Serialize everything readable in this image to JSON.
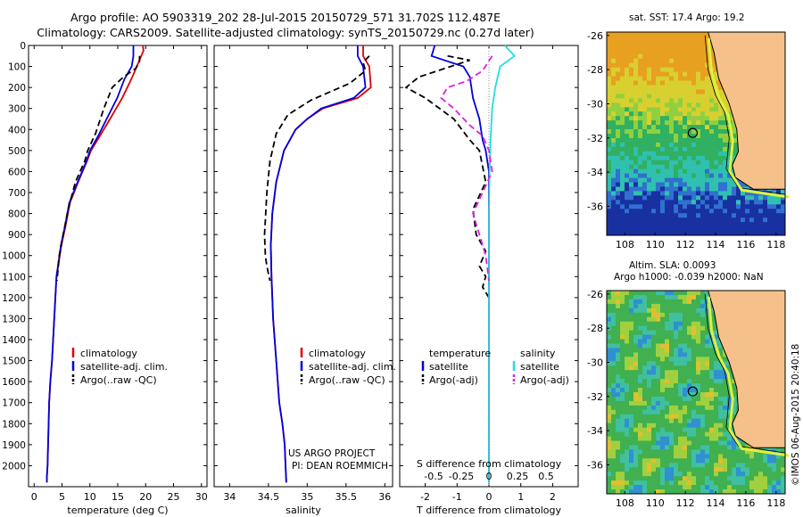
{
  "header": {
    "line1": "Argo profile: AO 5903319_202 28-Jul-2015 20150729_571 31.702S 112.487E",
    "line2": "Climatology: CARS2009. Satellite-adjusted climatology: synTS_20150729.nc (0.27d later)"
  },
  "colors": {
    "climatology": "#dd0000",
    "satellite": "#0000dd",
    "argo": "#000000",
    "sal_satellite": "#22dddd",
    "sal_argo": "#dd22dd"
  },
  "chart_data": [
    {
      "type": "line",
      "panel": "temperature",
      "xlabel": "temperature (deg C)",
      "ylim": [
        2100,
        0
      ],
      "xlim": [
        -1,
        31
      ],
      "xticks": [
        0,
        5,
        10,
        15,
        20,
        25,
        30
      ],
      "yticks": [
        0,
        100,
        200,
        300,
        400,
        500,
        600,
        700,
        800,
        900,
        1000,
        1100,
        1200,
        1300,
        1400,
        1500,
        1600,
        1700,
        1800,
        1900,
        2000
      ],
      "legend": [
        "climatology",
        "satellite-adj. clim.",
        "Argo(..raw -QC)"
      ],
      "series": [
        {
          "name": "climatology",
          "style": "solid",
          "color": "#dd0000",
          "x": [
            19.5,
            19.6,
            19.2,
            17.6,
            15.8,
            13.6,
            11.8,
            10.2,
            9.5,
            7.9,
            6.4,
            5.7,
            4.9,
            4.0,
            3.6,
            3.2,
            2.9,
            2.7,
            2.6,
            2.5,
            2.4,
            2.3,
            2.3
          ],
          "y": [
            0,
            25,
            50,
            150,
            250,
            350,
            430,
            500,
            550,
            650,
            750,
            850,
            950,
            1100,
            1300,
            1500,
            1600,
            1700,
            1800,
            1900,
            2000,
            2050,
            2080
          ]
        },
        {
          "name": "satellite-adj. clim.",
          "style": "solid",
          "color": "#0000dd",
          "x": [
            17.8,
            17.8,
            17.5,
            16.2,
            14.9,
            13.0,
            11.5,
            10.0,
            9.4,
            7.8,
            6.3,
            5.6,
            4.8,
            4.0,
            3.6,
            3.2,
            2.9,
            2.7,
            2.6,
            2.5,
            2.4,
            2.3,
            2.3
          ],
          "y": [
            0,
            50,
            100,
            160,
            250,
            350,
            430,
            500,
            550,
            650,
            750,
            850,
            950,
            1100,
            1300,
            1500,
            1600,
            1700,
            1800,
            1900,
            2000,
            2050,
            2080
          ]
        },
        {
          "name": "Argo(..raw -QC)",
          "style": "dashed",
          "color": "#000000",
          "x": [
            18.9,
            18.9,
            18.2,
            16.0,
            14.0,
            12.5,
            11.0,
            9.6,
            9.1,
            7.4,
            6.1,
            5.2,
            4.5,
            4.1
          ],
          "y": [
            50,
            75,
            110,
            150,
            200,
            300,
            420,
            500,
            550,
            650,
            780,
            900,
            1000,
            1120
          ]
        }
      ]
    },
    {
      "type": "line",
      "panel": "salinity",
      "xlabel": "salinity",
      "ylim": [
        2100,
        0
      ],
      "xlim": [
        33.8,
        36.1
      ],
      "xticks": [
        34,
        34.5,
        35,
        35.5,
        36
      ],
      "legend": [
        "climatology",
        "satellite-adj. clim.",
        "Argo(..raw -QC)"
      ],
      "series": [
        {
          "name": "climatology",
          "style": "solid",
          "color": "#dd0000",
          "x": [
            35.72,
            35.72,
            35.8,
            35.82,
            35.65,
            35.2,
            35.0,
            34.85,
            34.7,
            34.6,
            34.55,
            34.53,
            34.54,
            34.56,
            34.6,
            34.64,
            34.68,
            34.71,
            34.72,
            34.73
          ],
          "y": [
            0,
            50,
            100,
            200,
            250,
            300,
            350,
            400,
            500,
            650,
            800,
            950,
            1100,
            1300,
            1500,
            1700,
            1800,
            1900,
            2000,
            2080
          ]
        },
        {
          "name": "satellite-adj. clim.",
          "style": "solid",
          "color": "#0000dd",
          "x": [
            35.65,
            35.65,
            35.72,
            35.75,
            35.6,
            35.18,
            35.0,
            34.85,
            34.7,
            34.6,
            34.55,
            34.53,
            34.54,
            34.56,
            34.6,
            34.64,
            34.68,
            34.71,
            34.72,
            34.73
          ],
          "y": [
            0,
            50,
            100,
            200,
            250,
            300,
            350,
            400,
            500,
            650,
            800,
            950,
            1100,
            1300,
            1500,
            1700,
            1800,
            1900,
            2000,
            2080
          ]
        },
        {
          "name": "Argo(..raw -QC)",
          "style": "dashed",
          "color": "#000000",
          "x": [
            35.8,
            35.72,
            35.75,
            35.55,
            35.05,
            34.75,
            34.6,
            34.52,
            34.48,
            34.45,
            34.46,
            34.48,
            34.52
          ],
          "y": [
            50,
            80,
            120,
            180,
            260,
            330,
            420,
            550,
            700,
            900,
            1000,
            1050,
            1120
          ]
        }
      ]
    },
    {
      "type": "line",
      "panel": "difference",
      "xlabel": "T difference from climatology",
      "xlabel_top": "S difference from climatology",
      "ylim": [
        2100,
        0
      ],
      "xlim": [
        -2.8,
        2.8
      ],
      "xticks": [
        -2,
        -1,
        0,
        1,
        2
      ],
      "xticks_top": [
        "-0.5",
        "-0.25",
        "0",
        "0.25",
        "0.5"
      ],
      "legend_headers": [
        "temperature",
        "salinity"
      ],
      "legend": [
        "satellite",
        "Argo(-adj)",
        "satellite",
        "Argo(-adj)"
      ],
      "series": [
        {
          "name": "temperature satellite",
          "style": "solid",
          "color": "#0000dd",
          "x": [
            -1.7,
            -1.8,
            -0.8,
            -0.6,
            -0.5,
            -0.3,
            -0.2,
            -0.1,
            0,
            0,
            0,
            0
          ],
          "y": [
            0,
            50,
            100,
            150,
            250,
            350,
            450,
            500,
            600,
            900,
            1500,
            2080
          ]
        },
        {
          "name": "temperature Argo(-adj)",
          "style": "dashed",
          "color": "#000000",
          "x": [
            -1.3,
            -0.6,
            -1.2,
            -2.2,
            -2.6,
            -2.0,
            -1.1,
            -0.6,
            -0.3,
            -0.1,
            -0.5,
            -0.4,
            -0.1,
            -0.3,
            -0.1,
            -0.2,
            0
          ],
          "y": [
            50,
            70,
            100,
            150,
            200,
            250,
            350,
            450,
            500,
            650,
            780,
            900,
            980,
            1050,
            1100,
            1150,
            1200
          ]
        },
        {
          "name": "salinity satellite",
          "style": "solid",
          "color": "#22dddd",
          "x": [
            0.5,
            0.8,
            0.35,
            0.2,
            0.1,
            0.05,
            0.02,
            0,
            0,
            0,
            0
          ],
          "y": [
            0,
            50,
            100,
            200,
            300,
            450,
            600,
            800,
            1100,
            1500,
            2080
          ]
        },
        {
          "name": "salinity Argo(-adj)",
          "style": "dashed",
          "color": "#dd22dd",
          "x": [
            0.1,
            -0.2,
            -0.7,
            -1.3,
            -1.5,
            -1.1,
            -0.6,
            -0.2,
            0,
            0.1,
            -0.5,
            -0.3,
            -0.1,
            0
          ],
          "y": [
            50,
            120,
            170,
            200,
            250,
            300,
            380,
            430,
            500,
            600,
            800,
            900,
            1000,
            1120
          ]
        }
      ]
    }
  ],
  "maps": {
    "sst": {
      "title": "sat. SST: 17.4  Argo: 19.2",
      "xticks": [
        "108",
        "110",
        "112",
        "114",
        "116",
        "118"
      ],
      "yticks": [
        "-26",
        "-28",
        "-30",
        "-32",
        "-34",
        "-36"
      ]
    },
    "sla": {
      "title_line1": "Altim. SLA: 0.0093",
      "title_line2": "Argo h1000: -0.039 h2000: NaN",
      "xticks": [
        "108",
        "110",
        "112",
        "114",
        "116",
        "118"
      ],
      "yticks": [
        "-26",
        "-28",
        "-30",
        "-32",
        "-34",
        "-36"
      ]
    },
    "argo_position": {
      "lon": 112.487,
      "lat": -31.702
    }
  },
  "annotations": {
    "project_line1": "US ARGO PROJECT",
    "project_line2": "PI: DEAN ROEMMICH",
    "credit": "©IMOS 06-Aug-2015 20:40:18"
  }
}
